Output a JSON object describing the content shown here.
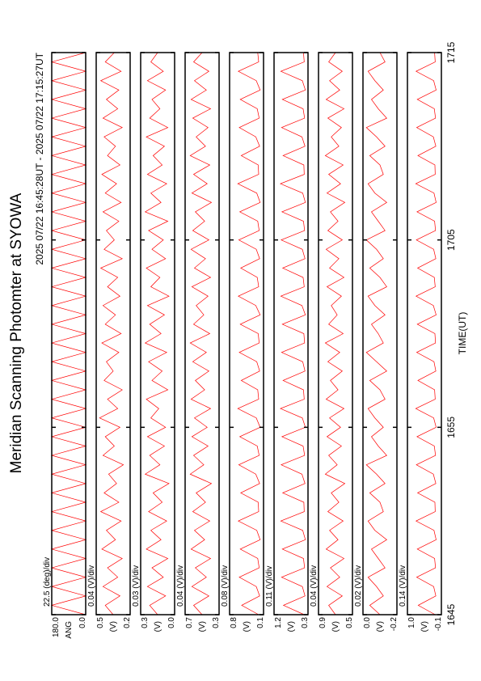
{
  "chart_data": {
    "type": "line",
    "title": "Meridian Scanning Photomter at SYOWA",
    "subtitle": "2025 07/22 16:45:28UT - 2025 07/22 17:15:27UT",
    "xlabel": "TIME(UT)",
    "color": "#ff0000",
    "xlim": [
      0,
      30
    ],
    "xticks": [
      {
        "value": 0,
        "label": "1645"
      },
      {
        "value": 10,
        "label": "1655"
      },
      {
        "value": 20,
        "label": "1705"
      },
      {
        "value": 30,
        "label": "1715"
      }
    ],
    "x": [
      0,
      0.5,
      1,
      1.5,
      2,
      2.5,
      3,
      3.5,
      4,
      4.5,
      5,
      5.5,
      6,
      6.5,
      7,
      7.5,
      8,
      8.5,
      9,
      9.5,
      10,
      10.5,
      11,
      11.5,
      12,
      12.5,
      13,
      13.5,
      14,
      14.5,
      15,
      15.5,
      16,
      16.5,
      17,
      17.5,
      18,
      18.5,
      19,
      19.5,
      20,
      20.5,
      21,
      21.5,
      22,
      22.5,
      23,
      23.5,
      24,
      24.5,
      25,
      25.5,
      26,
      26.5,
      27,
      27.5,
      28,
      28.5,
      29,
      29.5,
      30
    ],
    "panels": [
      {
        "label": "ANG",
        "scale": "22.5 (deg)/div",
        "ylim": [
          0,
          180
        ],
        "yticks": [
          {
            "value": 0,
            "label": "0.0"
          },
          {
            "value": 180,
            "label": "180.0"
          }
        ],
        "values": [
          0,
          180,
          0,
          180,
          0,
          180,
          0,
          180,
          0,
          180,
          0,
          180,
          0,
          180,
          0,
          180,
          0,
          180,
          0,
          180,
          0,
          180,
          0,
          180,
          0,
          180,
          0,
          180,
          0,
          180,
          0,
          180,
          0,
          180,
          0,
          180,
          0,
          180,
          0,
          180,
          0,
          180,
          0,
          180,
          0,
          180,
          0,
          180,
          0,
          180,
          0,
          180,
          0,
          180,
          0,
          180,
          0,
          180,
          0,
          180,
          0
        ]
      },
      {
        "label": "(V)",
        "scale": "0.04 (V)/div",
        "ylim": [
          0.2,
          0.5
        ],
        "yticks": [
          {
            "value": 0.2,
            "label": "0.2"
          },
          {
            "value": 0.5,
            "label": "0.5"
          }
        ],
        "values": [
          0.35,
          0.42,
          0.29,
          0.44,
          0.31,
          0.4,
          0.27,
          0.45,
          0.33,
          0.41,
          0.28,
          0.46,
          0.3,
          0.43,
          0.32,
          0.39,
          0.26,
          0.44,
          0.34,
          0.42,
          0.29,
          0.47,
          0.31,
          0.4,
          0.27,
          0.43,
          0.35,
          0.41,
          0.3,
          0.45,
          0.28,
          0.42,
          0.33,
          0.44,
          0.29,
          0.4,
          0.31,
          0.46,
          0.27,
          0.43,
          0.34,
          0.41,
          0.3,
          0.44,
          0.28,
          0.42,
          0.32,
          0.45,
          0.29,
          0.4,
          0.33,
          0.43,
          0.27,
          0.44,
          0.31,
          0.41,
          0.3,
          0.46,
          0.28,
          0.42,
          0.34
        ]
      },
      {
        "label": "(V)",
        "scale": "0.03 (V)/div",
        "ylim": [
          0,
          0.3
        ],
        "yticks": [
          {
            "value": 0,
            "label": "0.0"
          },
          {
            "value": 0.3,
            "label": "0.3"
          }
        ],
        "values": [
          0.15,
          0.22,
          0.08,
          0.24,
          0.1,
          0.2,
          0.06,
          0.25,
          0.12,
          0.21,
          0.07,
          0.23,
          0.11,
          0.19,
          0.05,
          0.26,
          0.13,
          0.22,
          0.09,
          0.24,
          0.08,
          0.21,
          0.14,
          0.25,
          0.06,
          0.2,
          0.11,
          0.23,
          0.07,
          0.26,
          0.12,
          0.22,
          0.09,
          0.24,
          0.05,
          0.21,
          0.13,
          0.25,
          0.08,
          0.2,
          0.1,
          0.23,
          0.06,
          0.26,
          0.12,
          0.21,
          0.07,
          0.24,
          0.11,
          0.19,
          0.09,
          0.25,
          0.06,
          0.22,
          0.13,
          0.2,
          0.08,
          0.24,
          0.1,
          0.21,
          0.15
        ]
      },
      {
        "label": "(V)",
        "scale": "0.04 (V)/div",
        "ylim": [
          0.3,
          0.7
        ],
        "yticks": [
          {
            "value": 0.3,
            "label": "0.3"
          },
          {
            "value": 0.7,
            "label": "0.7"
          }
        ],
        "values": [
          0.5,
          0.6,
          0.42,
          0.62,
          0.45,
          0.58,
          0.4,
          0.63,
          0.47,
          0.59,
          0.41,
          0.61,
          0.46,
          0.57,
          0.39,
          0.64,
          0.48,
          0.6,
          0.43,
          0.62,
          0.44,
          0.59,
          0.4,
          0.63,
          0.47,
          0.58,
          0.42,
          0.61,
          0.45,
          0.64,
          0.41,
          0.6,
          0.48,
          0.57,
          0.43,
          0.62,
          0.4,
          0.59,
          0.46,
          0.63,
          0.42,
          0.61,
          0.47,
          0.58,
          0.39,
          0.62,
          0.44,
          0.6,
          0.41,
          0.64,
          0.46,
          0.57,
          0.43,
          0.61,
          0.4,
          0.63,
          0.45,
          0.59,
          0.42,
          0.6,
          0.5
        ]
      },
      {
        "label": "(V)",
        "scale": "0.08 (V)/div",
        "ylim": [
          0.1,
          0.8
        ],
        "yticks": [
          {
            "value": 0.1,
            "label": "0.1"
          },
          {
            "value": 0.8,
            "label": "0.8"
          }
        ],
        "values": [
          0.2,
          0.55,
          0.18,
          0.25,
          0.6,
          0.19,
          0.22,
          0.58,
          0.17,
          0.24,
          0.62,
          0.2,
          0.21,
          0.57,
          0.18,
          0.26,
          0.61,
          0.19,
          0.23,
          0.59,
          0.17,
          0.25,
          0.63,
          0.2,
          0.22,
          0.56,
          0.18,
          0.24,
          0.6,
          0.19,
          0.21,
          0.58,
          0.17,
          0.26,
          0.62,
          0.2,
          0.23,
          0.57,
          0.18,
          0.25,
          0.61,
          0.19,
          0.22,
          0.59,
          0.17,
          0.24,
          0.63,
          0.2,
          0.21,
          0.56,
          0.18,
          0.26,
          0.6,
          0.19,
          0.23,
          0.58,
          0.17,
          0.25,
          0.62,
          0.2,
          0.22
        ]
      },
      {
        "label": "(V)",
        "scale": "0.11 (V)/div",
        "ylim": [
          0.3,
          1.2
        ],
        "yticks": [
          {
            "value": 0.3,
            "label": "0.3"
          },
          {
            "value": 1.2,
            "label": "1.2"
          }
        ],
        "values": [
          0.4,
          0.95,
          0.38,
          0.45,
          1.0,
          0.39,
          0.42,
          0.98,
          0.37,
          0.44,
          1.02,
          0.4,
          0.41,
          0.97,
          0.38,
          0.46,
          1.01,
          0.39,
          0.43,
          0.99,
          0.37,
          0.45,
          1.03,
          0.4,
          0.42,
          0.96,
          0.38,
          0.44,
          1.0,
          0.39,
          0.41,
          0.98,
          0.37,
          0.46,
          1.02,
          0.4,
          0.43,
          0.97,
          0.38,
          0.45,
          1.01,
          0.39,
          0.42,
          0.99,
          0.37,
          0.44,
          1.03,
          0.4,
          0.41,
          0.96,
          0.38,
          0.46,
          1.0,
          0.39,
          0.43,
          0.98,
          0.37,
          0.45,
          1.02,
          0.4,
          0.42
        ]
      },
      {
        "label": "(V)",
        "scale": "0.04 (V)/div",
        "ylim": [
          0.5,
          0.9
        ],
        "yticks": [
          {
            "value": 0.5,
            "label": "0.5"
          },
          {
            "value": 0.9,
            "label": "0.9"
          }
        ],
        "values": [
          0.7,
          0.78,
          0.62,
          0.8,
          0.65,
          0.76,
          0.6,
          0.81,
          0.67,
          0.77,
          0.61,
          0.79,
          0.66,
          0.75,
          0.59,
          0.82,
          0.68,
          0.78,
          0.63,
          0.8,
          0.64,
          0.77,
          0.6,
          0.81,
          0.67,
          0.76,
          0.62,
          0.79,
          0.65,
          0.82,
          0.61,
          0.78,
          0.68,
          0.75,
          0.63,
          0.8,
          0.6,
          0.77,
          0.66,
          0.81,
          0.62,
          0.79,
          0.67,
          0.76,
          0.59,
          0.8,
          0.64,
          0.78,
          0.61,
          0.82,
          0.66,
          0.75,
          0.63,
          0.79,
          0.6,
          0.81,
          0.65,
          0.77,
          0.62,
          0.78,
          0.7
        ]
      },
      {
        "label": "(V)",
        "scale": "0.02 (V)/div",
        "ylim": [
          -0.2,
          0
        ],
        "yticks": [
          {
            "value": -0.2,
            "label": "-0.2"
          },
          {
            "value": 0,
            "label": "0.0"
          }
        ],
        "values": [
          -0.1,
          -0.04,
          -0.12,
          -0.08,
          -0.03,
          -0.13,
          -0.09,
          -0.05,
          -0.14,
          -0.07,
          -0.03,
          -0.12,
          -0.1,
          -0.04,
          -0.13,
          -0.08,
          -0.02,
          -0.14,
          -0.09,
          -0.05,
          -0.12,
          -0.07,
          -0.03,
          -0.13,
          -0.1,
          -0.04,
          -0.14,
          -0.08,
          -0.02,
          -0.12,
          -0.09,
          -0.05,
          -0.13,
          -0.07,
          -0.03,
          -0.14,
          -0.1,
          -0.04,
          -0.12,
          -0.08,
          -0.02,
          -0.13,
          -0.09,
          -0.05,
          -0.14,
          -0.07,
          -0.03,
          -0.12,
          -0.1,
          -0.04,
          -0.13,
          -0.08,
          -0.02,
          -0.14,
          -0.09,
          -0.05,
          -0.12,
          -0.07,
          -0.03,
          -0.13,
          -0.1
        ]
      },
      {
        "label": "(V)",
        "scale": "0.14 (V)/div",
        "ylim": [
          -0.1,
          1.0
        ],
        "yticks": [
          {
            "value": -0.1,
            "label": "-0.1"
          },
          {
            "value": 1.0,
            "label": "1.0"
          }
        ],
        "values": [
          0.1,
          0.65,
          0.08,
          0.15,
          0.7,
          0.09,
          0.12,
          0.68,
          0.07,
          0.14,
          0.72,
          0.1,
          0.11,
          0.67,
          0.08,
          0.16,
          0.71,
          0.09,
          0.13,
          0.69,
          0.07,
          0.15,
          0.73,
          0.1,
          0.12,
          0.66,
          0.08,
          0.14,
          0.7,
          0.09,
          0.11,
          0.68,
          0.07,
          0.16,
          0.72,
          0.1,
          0.13,
          0.67,
          0.08,
          0.15,
          0.71,
          0.09,
          0.12,
          0.69,
          0.07,
          0.14,
          0.73,
          0.1,
          0.11,
          0.66,
          0.08,
          0.16,
          0.7,
          0.09,
          0.13,
          0.68,
          0.07,
          0.15,
          0.72,
          0.1,
          0.12
        ]
      }
    ]
  }
}
